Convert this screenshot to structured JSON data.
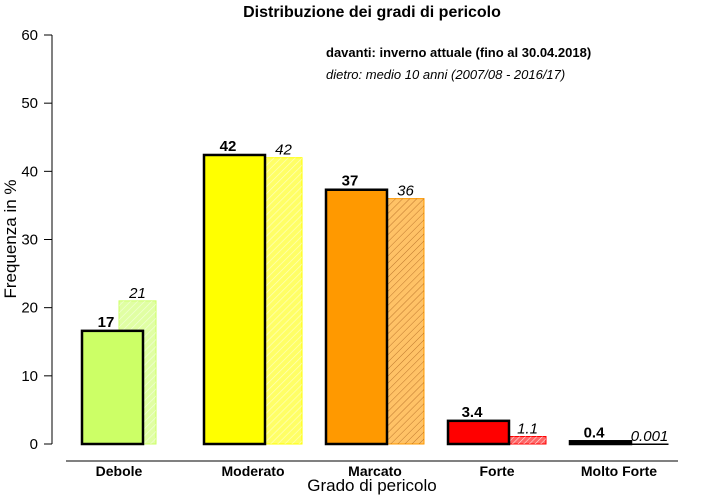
{
  "chart_data": {
    "type": "bar",
    "title": "Distribuzione dei gradi di pericolo",
    "xlabel": "Grado di pericolo",
    "ylabel": "Frequenza in %",
    "ylim": [
      0,
      60
    ],
    "yticks": [
      0,
      10,
      20,
      30,
      40,
      50,
      60
    ],
    "grid": false,
    "legend_position": "top-right",
    "legend": {
      "front": "davanti: inverno attuale (fino al 30.04.2018)",
      "back": "dietro: medio 10 anni (2007/08 - 2016/17)"
    },
    "categories": [
      "Debole",
      "Moderato",
      "Marcato",
      "Forte",
      "Molto Forte"
    ],
    "colors": [
      "#ccff66",
      "#ffff00",
      "#ff9900",
      "#ff0000",
      "#000000"
    ],
    "series": [
      {
        "role": "front",
        "values": [
          16.6,
          42.4,
          37.3,
          3.4,
          0.4
        ],
        "labels": [
          "17",
          "42",
          "37",
          "3.4",
          "0.4"
        ]
      },
      {
        "role": "back",
        "values": [
          21.0,
          42.0,
          36.0,
          1.1,
          0.001
        ],
        "labels": [
          "21",
          "42",
          "36",
          "1.1",
          "0.001"
        ]
      }
    ]
  }
}
